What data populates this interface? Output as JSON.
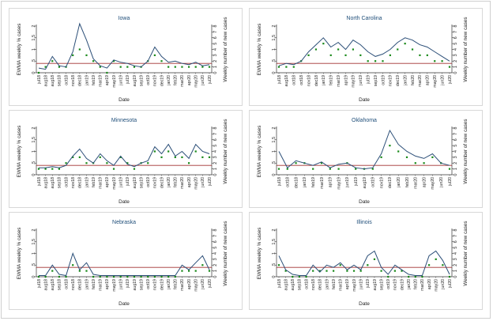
{
  "figure": {
    "left_axis_label": "EWMA weekly % cases",
    "right_axis_label": "Weekly number of new cases",
    "x_axis_label": "Date",
    "colors": {
      "ewma_line": "#2c4f78",
      "new_cases": "#1a8a1a",
      "threshold": "#a23030",
      "title": "#1f4e79"
    }
  },
  "chart_data": [
    {
      "type": "line",
      "title": "Iowa",
      "xlabel": "Date",
      "ylabel": "EWMA weekly % cases",
      "y2label": "Weekly number of new cases",
      "ylim": [
        0,
        2
      ],
      "y2lim": [
        0,
        8
      ],
      "threshold": 0.4,
      "x": [
        "jul18",
        "aug18",
        "aug18",
        "sep18",
        "oct18",
        "nov18",
        "dec18",
        "jan19",
        "feb19",
        "mar19",
        "apr19",
        "may19",
        "jun19",
        "jul19",
        "aug19",
        "sep19",
        "oct19",
        "nov19",
        "dec19",
        "jan20",
        "feb20",
        "mar20",
        "apr20",
        "may20",
        "jun20",
        "jul20"
      ],
      "yticks": [
        "0",
        ".5",
        "1",
        "1.5",
        "2"
      ],
      "y2ticks": [
        "0",
        "1",
        "2",
        "3",
        "4",
        "5",
        "6",
        "7",
        "8"
      ],
      "series": [
        {
          "name": "EWMA",
          "values": [
            0.2,
            0.15,
            0.7,
            0.3,
            0.25,
            0.9,
            2.1,
            1.4,
            0.6,
            0.3,
            0.2,
            0.55,
            0.45,
            0.4,
            0.3,
            0.25,
            0.5,
            1.1,
            0.7,
            0.45,
            0.5,
            0.4,
            0.35,
            0.45,
            0.3,
            0.35
          ]
        }
      ],
      "new_cases": [
        0,
        1,
        2,
        1,
        1,
        3,
        4,
        3,
        2,
        1,
        0,
        2,
        1,
        1,
        1,
        1,
        2,
        3,
        2,
        1,
        1,
        1,
        1,
        1,
        1,
        1
      ]
    },
    {
      "type": "line",
      "title": "North Carolina",
      "xlabel": "Date",
      "ylabel": "EWMA weekly % cases",
      "y2label": "Weekly number of new cases",
      "ylim": [
        0,
        2
      ],
      "y2lim": [
        0,
        8
      ],
      "threshold": 0.4,
      "x": [
        "jul18",
        "aug18",
        "oct18",
        "oct18",
        "nov18",
        "dec18",
        "jan19",
        "feb19",
        "mar19",
        "apr19",
        "may19",
        "jun19",
        "jul19",
        "sep19",
        "oct19",
        "nov19",
        "dec19",
        "jan20",
        "feb20",
        "mar20",
        "apr20",
        "may20",
        "jun20",
        "jul20"
      ],
      "yticks": [
        "0",
        ".5",
        "1",
        "1.5",
        "2"
      ],
      "y2ticks": [
        "0",
        "1",
        "2",
        "3",
        "4",
        "5",
        "6",
        "7",
        "8"
      ],
      "series": [
        {
          "name": "EWMA",
          "values": [
            0.3,
            0.4,
            0.35,
            0.5,
            0.9,
            1.2,
            1.5,
            1.1,
            1.3,
            1.0,
            1.4,
            1.2,
            0.9,
            0.7,
            0.8,
            1.0,
            1.3,
            1.5,
            1.4,
            1.2,
            1.1,
            0.9,
            0.7,
            0.5
          ]
        }
      ],
      "new_cases": [
        1,
        1,
        1,
        2,
        3,
        4,
        5,
        3,
        4,
        3,
        4,
        3,
        2,
        2,
        2,
        3,
        4,
        5,
        4,
        3,
        3,
        2,
        2,
        1
      ]
    },
    {
      "type": "line",
      "title": "Minnesota",
      "xlabel": "Date",
      "ylabel": "EWMA weekly % cases",
      "y2label": "Weekly number of new cases",
      "ylim": [
        0,
        2
      ],
      "y2lim": [
        0,
        8
      ],
      "threshold": 0.4,
      "x": [
        "jul18",
        "aug18",
        "aug18",
        "sep18",
        "oct18",
        "nov18",
        "dec18",
        "jan19",
        "feb19",
        "mar19",
        "apr19",
        "may19",
        "jun19",
        "jul19",
        "aug19",
        "sep19",
        "oct19",
        "nov19",
        "dec19",
        "jan20",
        "feb20",
        "mar20",
        "apr20",
        "may20",
        "jun20",
        "jul20"
      ],
      "yticks": [
        "0",
        ".5",
        "1",
        "1.5",
        "2"
      ],
      "y2ticks": [
        "0",
        "1",
        "2",
        "3",
        "4",
        "5",
        "6",
        "7",
        "8"
      ],
      "series": [
        {
          "name": "EWMA",
          "values": [
            0.3,
            0.3,
            0.35,
            0.3,
            0.4,
            0.8,
            1.1,
            0.7,
            0.5,
            0.9,
            0.6,
            0.4,
            0.8,
            0.45,
            0.35,
            0.5,
            0.6,
            1.2,
            0.9,
            1.3,
            0.8,
            1.0,
            0.7,
            1.3,
            1.0,
            0.9
          ]
        }
      ],
      "new_cases": [
        1,
        1,
        1,
        1,
        2,
        3,
        3,
        2,
        2,
        3,
        2,
        1,
        3,
        2,
        1,
        2,
        2,
        4,
        3,
        4,
        3,
        3,
        2,
        4,
        3,
        3
      ]
    },
    {
      "type": "line",
      "title": "Oklahoma",
      "xlabel": "Date",
      "ylabel": "EWMA weekly % cases",
      "y2label": "Weekly number of new cases",
      "ylim": [
        0,
        2
      ],
      "y2lim": [
        0,
        8
      ],
      "threshold": 0.4,
      "x": [
        "jul18",
        "oct18",
        "dec18",
        "jan19",
        "feb19",
        "mar19",
        "apr19",
        "may19",
        "jun19",
        "jul19",
        "aug19",
        "oct19",
        "nov19",
        "dec19",
        "jan20",
        "feb20",
        "mar20",
        "apr20",
        "may20",
        "jun20",
        "jul20"
      ],
      "yticks": [
        "0",
        ".5",
        "1",
        "1.5",
        "2"
      ],
      "y2ticks": [
        "0",
        "1",
        "2",
        "3",
        "4",
        "5",
        "6",
        "7",
        "8"
      ],
      "series": [
        {
          "name": "EWMA",
          "values": [
            1.0,
            0.3,
            0.6,
            0.5,
            0.4,
            0.55,
            0.3,
            0.45,
            0.5,
            0.3,
            0.25,
            0.3,
            0.9,
            1.9,
            1.3,
            1.0,
            0.8,
            0.7,
            0.9,
            0.5,
            0.4
          ]
        }
      ],
      "new_cases": [
        1,
        1,
        2,
        2,
        1,
        2,
        1,
        1,
        2,
        1,
        1,
        1,
        3,
        5,
        4,
        3,
        2,
        2,
        3,
        2,
        1
      ]
    },
    {
      "type": "line",
      "title": "Nebraska",
      "xlabel": "Date",
      "ylabel": "EWMA weekly % cases",
      "y2label": "Weekly number of new cases",
      "ylim": [
        0,
        2
      ],
      "y2lim": [
        0,
        8
      ],
      "threshold": 0.4,
      "x": [
        "jul18",
        "aug18",
        "aug18",
        "sep18",
        "oct18",
        "nov18",
        "dec18",
        "jan19",
        "feb19",
        "mar19",
        "apr19",
        "may19",
        "jun19",
        "jul19",
        "aug19",
        "sep19",
        "oct19",
        "nov19",
        "dec19",
        "jan20",
        "feb20",
        "mar20",
        "apr20",
        "may20",
        "jun20",
        "jul20"
      ],
      "yticks": [
        "0",
        ".5",
        "1",
        "1.5",
        "2"
      ],
      "y2ticks": [
        "0",
        "1",
        "2",
        "3",
        "4",
        "5",
        "6",
        "7",
        "8"
      ],
      "series": [
        {
          "name": "EWMA",
          "values": [
            0.05,
            0.05,
            0.5,
            0.1,
            0.05,
            1.0,
            0.3,
            0.6,
            0.1,
            0.05,
            0.05,
            0.05,
            0.05,
            0.05,
            0.05,
            0.05,
            0.05,
            0.05,
            0.05,
            0.05,
            0.05,
            0.5,
            0.3,
            0.6,
            0.9,
            0.3
          ]
        }
      ],
      "new_cases": [
        0,
        0,
        1,
        0,
        0,
        2,
        1,
        1,
        0,
        0,
        0,
        0,
        0,
        0,
        0,
        0,
        0,
        0,
        0,
        0,
        0,
        1,
        1,
        1,
        2,
        1
      ]
    },
    {
      "type": "line",
      "title": "Illinois",
      "xlabel": "Date",
      "ylabel": "EWMA weekly % cases",
      "y2label": "Weekly number of new cases",
      "ylim": [
        0,
        2
      ],
      "y2lim": [
        0,
        8
      ],
      "threshold": 0.4,
      "x": [
        "jul18",
        "aug18",
        "aug18",
        "sep18",
        "oct18",
        "nov18",
        "dec18",
        "jan19",
        "feb19",
        "mar19",
        "apr19",
        "may19",
        "jun19",
        "jul19",
        "aug19",
        "sep19",
        "oct19",
        "nov19",
        "dec19",
        "jan20",
        "feb20",
        "mar20",
        "apr20",
        "may20",
        "jun20",
        "jul20"
      ],
      "yticks": [
        "0",
        ".5",
        "1",
        "1.5",
        "2"
      ],
      "y2ticks": [
        "0",
        "1",
        "2",
        "3",
        "4",
        "5",
        "6",
        "7",
        "8"
      ],
      "series": [
        {
          "name": "EWMA",
          "values": [
            0.9,
            0.3,
            0.1,
            0.05,
            0.05,
            0.5,
            0.2,
            0.5,
            0.4,
            0.6,
            0.3,
            0.5,
            0.3,
            0.9,
            1.1,
            0.4,
            0.1,
            0.5,
            0.3,
            0.1,
            0.05,
            0.05,
            0.9,
            1.1,
            0.7,
            0.1
          ]
        }
      ],
      "new_cases": [
        2,
        1,
        0,
        0,
        0,
        1,
        1,
        1,
        1,
        2,
        1,
        1,
        1,
        2,
        3,
        1,
        0,
        1,
        1,
        0,
        0,
        0,
        2,
        3,
        2,
        0
      ]
    }
  ]
}
